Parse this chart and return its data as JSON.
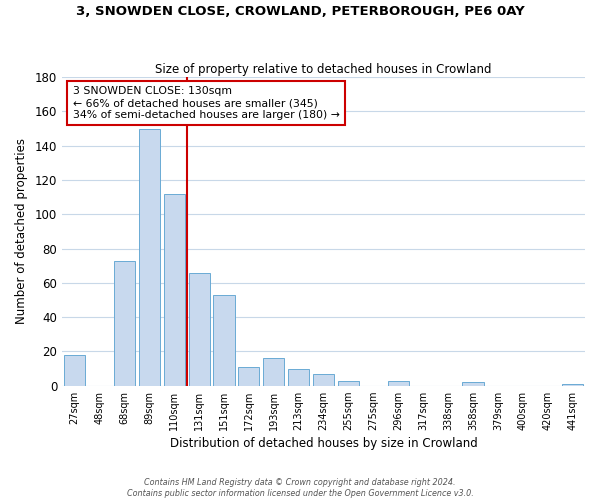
{
  "title": "3, SNOWDEN CLOSE, CROWLAND, PETERBOROUGH, PE6 0AY",
  "subtitle": "Size of property relative to detached houses in Crowland",
  "xlabel": "Distribution of detached houses by size in Crowland",
  "ylabel": "Number of detached properties",
  "bar_color": "#c8d9ee",
  "bar_edge_color": "#6aaad4",
  "categories": [
    "27sqm",
    "48sqm",
    "68sqm",
    "89sqm",
    "110sqm",
    "131sqm",
    "151sqm",
    "172sqm",
    "193sqm",
    "213sqm",
    "234sqm",
    "255sqm",
    "275sqm",
    "296sqm",
    "317sqm",
    "338sqm",
    "358sqm",
    "379sqm",
    "400sqm",
    "420sqm",
    "441sqm"
  ],
  "values": [
    18,
    0,
    73,
    150,
    112,
    66,
    53,
    11,
    16,
    10,
    7,
    3,
    0,
    3,
    0,
    0,
    2,
    0,
    0,
    0,
    1
  ],
  "ylim": [
    0,
    180
  ],
  "yticks": [
    0,
    20,
    40,
    60,
    80,
    100,
    120,
    140,
    160,
    180
  ],
  "marker_label": "3 SNOWDEN CLOSE: 130sqm",
  "annotation_line1": "← 66% of detached houses are smaller (345)",
  "annotation_line2": "34% of semi-detached houses are larger (180) →",
  "marker_color": "#cc0000",
  "annotation_box_edge": "#cc0000",
  "background_color": "#ffffff",
  "grid_color": "#c8d8e8",
  "footer_line1": "Contains HM Land Registry data © Crown copyright and database right 2024.",
  "footer_line2": "Contains public sector information licensed under the Open Government Licence v3.0."
}
